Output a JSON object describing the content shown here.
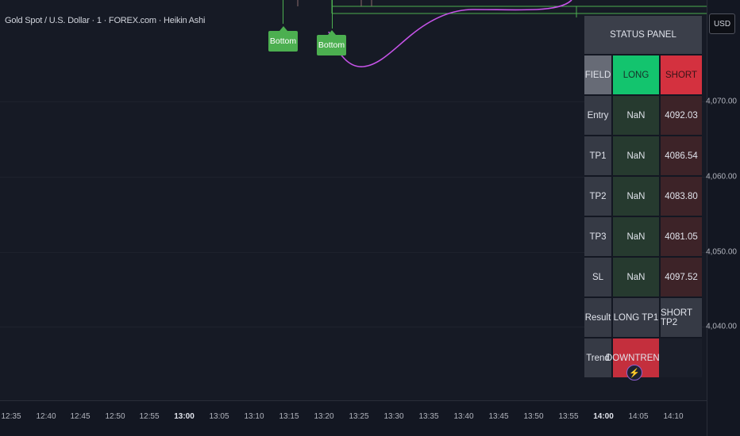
{
  "chart": {
    "symbol_title": "Gold Spot / U.S. Dollar · 1 · FOREX.com · Heikin Ashi",
    "currency": "USD",
    "markers": [
      {
        "label": "Bottom"
      },
      {
        "label": "Bottom"
      }
    ],
    "price_labels": [
      "4,070.00",
      "4,060.00",
      "4,050.00",
      "4,040.00"
    ],
    "time_labels": [
      {
        "text": "12:35"
      },
      {
        "text": "12:40"
      },
      {
        "text": "12:45"
      },
      {
        "text": "12:50"
      },
      {
        "text": "12:55"
      },
      {
        "text": "13:00"
      },
      {
        "text": "13:05"
      },
      {
        "text": "13:10"
      },
      {
        "text": "13:15"
      },
      {
        "text": "13:20"
      },
      {
        "text": "13:25"
      },
      {
        "text": "13:30"
      },
      {
        "text": "13:35"
      },
      {
        "text": "13:40"
      },
      {
        "text": "13:45"
      },
      {
        "text": "13:50"
      },
      {
        "text": "13:55"
      },
      {
        "text": "14:00"
      },
      {
        "text": "14:05"
      },
      {
        "text": "14:10"
      }
    ],
    "colors": {
      "background": "#161a25",
      "line": "#c653e8",
      "marker": "#4caf50",
      "long": "#13c46e",
      "short": "#d4313f"
    }
  },
  "status_panel": {
    "title": "STATUS PANEL",
    "header": {
      "field": "FIELD",
      "long": "LONG",
      "short": "SHORT"
    },
    "rows": [
      {
        "field": "Entry",
        "long": "NaN",
        "short": "4092.03"
      },
      {
        "field": "TP1",
        "long": "NaN",
        "short": "4086.54"
      },
      {
        "field": "TP2",
        "long": "NaN",
        "short": "4083.80"
      },
      {
        "field": "TP3",
        "long": "NaN",
        "short": "4081.05"
      },
      {
        "field": "SL",
        "long": "NaN",
        "short": "4097.52"
      }
    ],
    "result": {
      "field": "Result",
      "long": "LONG TP1",
      "short": "SHORT TP2"
    },
    "trend": {
      "field": "Trend",
      "value": "DOWNTREND"
    }
  },
  "bolt_icon": "lightning-icon"
}
